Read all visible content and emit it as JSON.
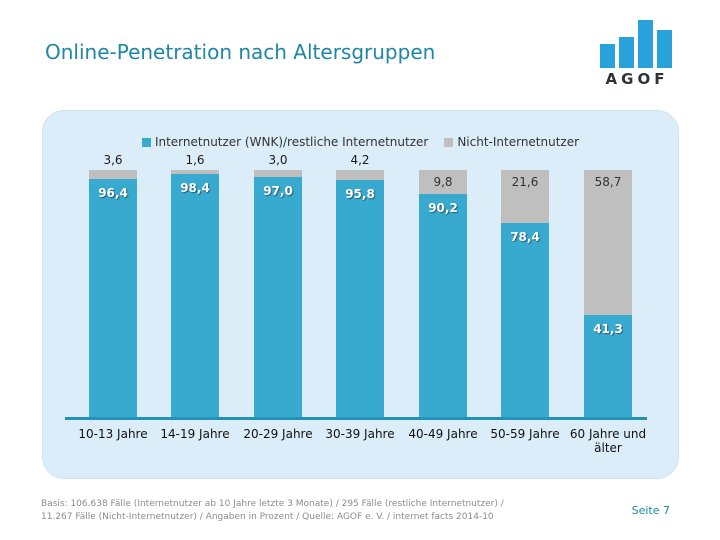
{
  "slide": {
    "title": "Online-Penetration nach Altersgruppen",
    "logo": {
      "text": "AGOF",
      "bar_color": "#29A2DB",
      "text_color": "#2E3338"
    },
    "footer_line1": "Basis: 106.638 Fälle (Internetnutzer ab 10 Jahre letzte 3 Monate) / 295 Fälle (restliche Internetnutzer) /",
    "footer_line2": "11.267 Fälle (Nicht-Internetnutzer) / Angaben in Prozent / Quelle: AGOF e. V. / internet facts 2014-10",
    "page_label": "Seite 7",
    "colors": {
      "title_teal": "#1E86A8",
      "panel_background": "#DCEDFA",
      "axis_line": "#2193B8"
    }
  },
  "chart_data": {
    "type": "bar",
    "stacked": true,
    "percent_stacked": true,
    "title": "",
    "xlabel": "",
    "ylabel": "",
    "ylim": [
      0,
      100
    ],
    "grid": false,
    "legend_position": "top-center",
    "value_format": "german-comma",
    "categories": [
      "10-13 Jahre",
      "14-19 Jahre",
      "20-29 Jahre",
      "30-39 Jahre",
      "40-49 Jahre",
      "50-59 Jahre",
      "60 Jahre und älter"
    ],
    "series": [
      {
        "name": "Internetnutzer (WNK)/restliche Internetnutzer",
        "color": "#38A9CF",
        "values": [
          96.4,
          98.4,
          97.0,
          95.8,
          90.2,
          78.4,
          41.3
        ],
        "labels": [
          "96,4",
          "98,4",
          "97,0",
          "95,8",
          "90,2",
          "78,4",
          "41,3"
        ]
      },
      {
        "name": "Nicht-Internetnutzer",
        "color": "#BFBFBF",
        "values": [
          3.6,
          1.6,
          3.0,
          4.2,
          9.8,
          21.6,
          58.7
        ],
        "labels": [
          "3,6",
          "1,6",
          "3,0",
          "4,2",
          "9,8",
          "21,6",
          "58,7"
        ]
      }
    ]
  }
}
